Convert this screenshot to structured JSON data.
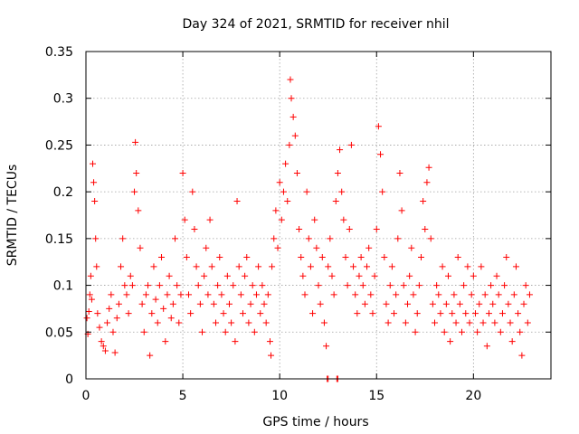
{
  "chart_data": {
    "type": "scatter",
    "title": "Day 324 of 2021, SRMTID for receiver nhil",
    "xlabel": "GPS time / hours",
    "ylabel": "SRMTID / TECUs",
    "xlim": [
      0,
      24
    ],
    "ylim": [
      0,
      0.35
    ],
    "x_ticks": [
      0,
      5,
      10,
      15,
      20
    ],
    "x_tick_labels": [
      "0",
      "5",
      "10",
      "15",
      "20"
    ],
    "y_ticks": [
      0,
      0.05,
      0.1,
      0.15,
      0.2,
      0.25,
      0.3,
      0.35
    ],
    "y_tick_labels": [
      "0",
      "0.05",
      "0.1",
      "0.15",
      "0.2",
      "0.25",
      "0.3",
      "0.35"
    ],
    "grid": true,
    "marker": "+",
    "color": "#ff0000",
    "series": [
      {
        "name": "SRMTID",
        "points": [
          [
            0.05,
            0.065
          ],
          [
            0.1,
            0.048
          ],
          [
            0.15,
            0.072
          ],
          [
            0.2,
            0.09
          ],
          [
            0.25,
            0.11
          ],
          [
            0.3,
            0.085
          ],
          [
            0.35,
            0.23
          ],
          [
            0.4,
            0.21
          ],
          [
            0.45,
            0.19
          ],
          [
            0.5,
            0.15
          ],
          [
            0.55,
            0.12
          ],
          [
            0.6,
            0.07
          ],
          [
            0.7,
            0.055
          ],
          [
            0.8,
            0.04
          ],
          [
            0.9,
            0.035
          ],
          [
            1.0,
            0.03
          ],
          [
            1.1,
            0.06
          ],
          [
            1.2,
            0.075
          ],
          [
            1.3,
            0.09
          ],
          [
            1.4,
            0.05
          ],
          [
            1.5,
            0.028
          ],
          [
            1.6,
            0.065
          ],
          [
            1.7,
            0.08
          ],
          [
            1.8,
            0.12
          ],
          [
            1.9,
            0.15
          ],
          [
            2.0,
            0.1
          ],
          [
            2.1,
            0.09
          ],
          [
            2.2,
            0.07
          ],
          [
            2.3,
            0.11
          ],
          [
            2.4,
            0.1
          ],
          [
            2.5,
            0.2
          ],
          [
            2.55,
            0.253
          ],
          [
            2.6,
            0.22
          ],
          [
            2.7,
            0.18
          ],
          [
            2.8,
            0.14
          ],
          [
            2.9,
            0.08
          ],
          [
            3.0,
            0.05
          ],
          [
            3.1,
            0.09
          ],
          [
            3.2,
            0.1
          ],
          [
            3.3,
            0.025
          ],
          [
            3.4,
            0.07
          ],
          [
            3.5,
            0.12
          ],
          [
            3.6,
            0.085
          ],
          [
            3.7,
            0.06
          ],
          [
            3.8,
            0.1
          ],
          [
            3.9,
            0.13
          ],
          [
            4.0,
            0.075
          ],
          [
            4.1,
            0.04
          ],
          [
            4.2,
            0.09
          ],
          [
            4.3,
            0.11
          ],
          [
            4.4,
            0.065
          ],
          [
            4.5,
            0.08
          ],
          [
            4.6,
            0.15
          ],
          [
            4.7,
            0.1
          ],
          [
            4.8,
            0.06
          ],
          [
            4.9,
            0.09
          ],
          [
            5.0,
            0.22
          ],
          [
            5.1,
            0.17
          ],
          [
            5.2,
            0.13
          ],
          [
            5.3,
            0.09
          ],
          [
            5.4,
            0.07
          ],
          [
            5.5,
            0.2
          ],
          [
            5.6,
            0.16
          ],
          [
            5.7,
            0.12
          ],
          [
            5.8,
            0.1
          ],
          [
            5.9,
            0.08
          ],
          [
            6.0,
            0.05
          ],
          [
            6.1,
            0.11
          ],
          [
            6.2,
            0.14
          ],
          [
            6.3,
            0.09
          ],
          [
            6.4,
            0.17
          ],
          [
            6.5,
            0.12
          ],
          [
            6.6,
            0.08
          ],
          [
            6.7,
            0.06
          ],
          [
            6.8,
            0.1
          ],
          [
            6.9,
            0.13
          ],
          [
            7.0,
            0.09
          ],
          [
            7.1,
            0.07
          ],
          [
            7.2,
            0.05
          ],
          [
            7.3,
            0.11
          ],
          [
            7.4,
            0.08
          ],
          [
            7.5,
            0.06
          ],
          [
            7.6,
            0.1
          ],
          [
            7.7,
            0.04
          ],
          [
            7.8,
            0.19
          ],
          [
            7.9,
            0.12
          ],
          [
            8.0,
            0.09
          ],
          [
            8.1,
            0.07
          ],
          [
            8.2,
            0.11
          ],
          [
            8.3,
            0.13
          ],
          [
            8.4,
            0.06
          ],
          [
            8.5,
            0.08
          ],
          [
            8.6,
            0.1
          ],
          [
            8.7,
            0.05
          ],
          [
            8.8,
            0.09
          ],
          [
            8.9,
            0.12
          ],
          [
            9.0,
            0.07
          ],
          [
            9.1,
            0.1
          ],
          [
            9.2,
            0.08
          ],
          [
            9.3,
            0.06
          ],
          [
            9.4,
            0.09
          ],
          [
            9.5,
            0.04
          ],
          [
            9.55,
            0.025
          ],
          [
            9.6,
            0.12
          ],
          [
            9.7,
            0.15
          ],
          [
            9.8,
            0.18
          ],
          [
            9.9,
            0.14
          ],
          [
            10.0,
            0.21
          ],
          [
            10.1,
            0.17
          ],
          [
            10.2,
            0.2
          ],
          [
            10.3,
            0.23
          ],
          [
            10.4,
            0.19
          ],
          [
            10.5,
            0.25
          ],
          [
            10.55,
            0.32
          ],
          [
            10.6,
            0.3
          ],
          [
            10.7,
            0.28
          ],
          [
            10.8,
            0.26
          ],
          [
            10.9,
            0.22
          ],
          [
            11.0,
            0.16
          ],
          [
            11.1,
            0.13
          ],
          [
            11.2,
            0.11
          ],
          [
            11.3,
            0.09
          ],
          [
            11.4,
            0.2
          ],
          [
            11.5,
            0.15
          ],
          [
            11.6,
            0.12
          ],
          [
            11.7,
            0.07
          ],
          [
            11.8,
            0.17
          ],
          [
            11.9,
            0.14
          ],
          [
            12.0,
            0.1
          ],
          [
            12.1,
            0.08
          ],
          [
            12.2,
            0.13
          ],
          [
            12.3,
            0.06
          ],
          [
            12.4,
            0.035
          ],
          [
            12.5,
            0.12
          ],
          [
            12.6,
            0.15
          ],
          [
            12.7,
            0.11
          ],
          [
            12.8,
            0.09
          ],
          [
            12.9,
            0.19
          ],
          [
            13.0,
            0.22
          ],
          [
            13.1,
            0.245
          ],
          [
            13.2,
            0.2
          ],
          [
            13.3,
            0.17
          ],
          [
            13.4,
            0.13
          ],
          [
            13.5,
            0.1
          ],
          [
            13.6,
            0.16
          ],
          [
            13.7,
            0.25
          ],
          [
            13.8,
            0.12
          ],
          [
            13.9,
            0.09
          ],
          [
            14.0,
            0.07
          ],
          [
            14.1,
            0.11
          ],
          [
            14.2,
            0.13
          ],
          [
            14.3,
            0.1
          ],
          [
            14.4,
            0.08
          ],
          [
            14.5,
            0.12
          ],
          [
            14.6,
            0.14
          ],
          [
            14.7,
            0.09
          ],
          [
            14.8,
            0.07
          ],
          [
            14.9,
            0.11
          ],
          [
            15.0,
            0.16
          ],
          [
            15.1,
            0.27
          ],
          [
            15.2,
            0.24
          ],
          [
            15.3,
            0.2
          ],
          [
            15.4,
            0.13
          ],
          [
            15.5,
            0.08
          ],
          [
            15.6,
            0.06
          ],
          [
            15.7,
            0.1
          ],
          [
            15.8,
            0.12
          ],
          [
            15.9,
            0.07
          ],
          [
            16.0,
            0.09
          ],
          [
            16.1,
            0.15
          ],
          [
            16.2,
            0.22
          ],
          [
            16.3,
            0.18
          ],
          [
            16.4,
            0.1
          ],
          [
            16.5,
            0.06
          ],
          [
            16.6,
            0.08
          ],
          [
            16.7,
            0.11
          ],
          [
            16.8,
            0.14
          ],
          [
            16.9,
            0.09
          ],
          [
            17.0,
            0.05
          ],
          [
            17.1,
            0.07
          ],
          [
            17.2,
            0.1
          ],
          [
            17.3,
            0.13
          ],
          [
            17.4,
            0.19
          ],
          [
            17.5,
            0.16
          ],
          [
            17.6,
            0.21
          ],
          [
            17.7,
            0.226
          ],
          [
            17.8,
            0.15
          ],
          [
            17.9,
            0.08
          ],
          [
            18.0,
            0.06
          ],
          [
            18.1,
            0.1
          ],
          [
            18.2,
            0.09
          ],
          [
            18.3,
            0.07
          ],
          [
            18.4,
            0.12
          ],
          [
            18.5,
            0.05
          ],
          [
            18.6,
            0.08
          ],
          [
            18.7,
            0.11
          ],
          [
            18.8,
            0.04
          ],
          [
            18.9,
            0.07
          ],
          [
            19.0,
            0.09
          ],
          [
            19.1,
            0.06
          ],
          [
            19.2,
            0.13
          ],
          [
            19.3,
            0.08
          ],
          [
            19.4,
            0.05
          ],
          [
            19.5,
            0.1
          ],
          [
            19.6,
            0.07
          ],
          [
            19.7,
            0.12
          ],
          [
            19.8,
            0.06
          ],
          [
            19.9,
            0.09
          ],
          [
            20.0,
            0.11
          ],
          [
            20.1,
            0.07
          ],
          [
            20.2,
            0.05
          ],
          [
            20.3,
            0.08
          ],
          [
            20.4,
            0.12
          ],
          [
            20.5,
            0.06
          ],
          [
            20.6,
            0.09
          ],
          [
            20.7,
            0.035
          ],
          [
            20.8,
            0.07
          ],
          [
            20.9,
            0.1
          ],
          [
            21.0,
            0.08
          ],
          [
            21.1,
            0.06
          ],
          [
            21.2,
            0.11
          ],
          [
            21.3,
            0.09
          ],
          [
            21.4,
            0.05
          ],
          [
            21.5,
            0.07
          ],
          [
            21.6,
            0.1
          ],
          [
            21.7,
            0.13
          ],
          [
            21.8,
            0.08
          ],
          [
            21.9,
            0.06
          ],
          [
            22.0,
            0.04
          ],
          [
            22.1,
            0.09
          ],
          [
            22.2,
            0.12
          ],
          [
            22.3,
            0.07
          ],
          [
            22.4,
            0.05
          ],
          [
            22.5,
            0.025
          ],
          [
            22.6,
            0.08
          ],
          [
            22.7,
            0.1
          ],
          [
            22.8,
            0.06
          ],
          [
            22.9,
            0.09
          ],
          [
            12.45,
            0.0
          ],
          [
            12.5,
            0.0
          ],
          [
            12.95,
            0.0
          ],
          [
            13.0,
            0.0
          ]
        ]
      }
    ]
  }
}
